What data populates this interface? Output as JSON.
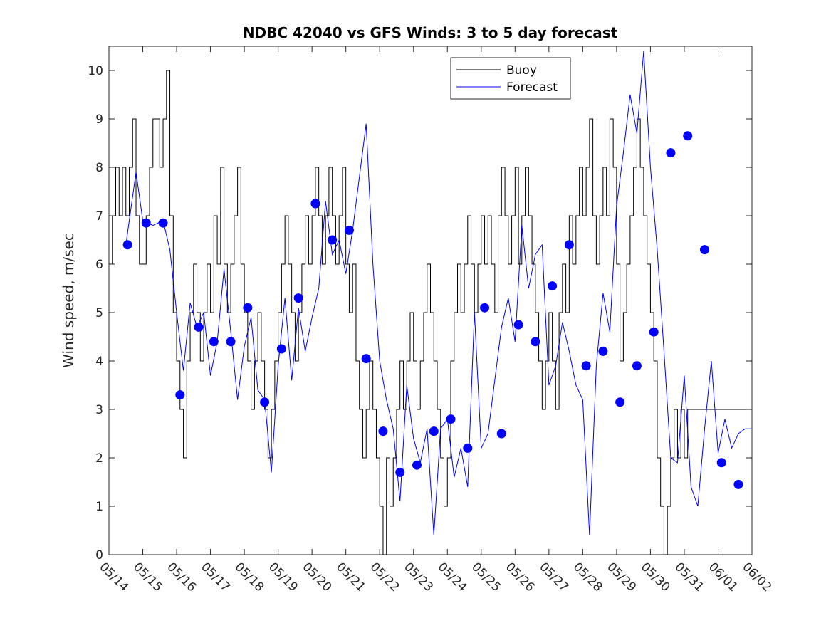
{
  "chart_data": {
    "type": "line",
    "title": "NDBC 42040 vs GFS Winds: 3 to 5 day forecast",
    "xlabel": "",
    "ylabel": "Wind speed, m/sec",
    "xlim": [
      "05/14",
      "06/02"
    ],
    "ylim": [
      0,
      10.5
    ],
    "x_ticks": [
      "05/14",
      "05/15",
      "05/16",
      "05/17",
      "05/18",
      "05/19",
      "05/20",
      "05/21",
      "05/22",
      "05/23",
      "05/24",
      "05/25",
      "05/26",
      "05/27",
      "05/28",
      "05/29",
      "05/30",
      "05/31",
      "06/01",
      "06/02"
    ],
    "y_ticks": [
      0,
      1,
      2,
      3,
      4,
      5,
      6,
      7,
      8,
      9,
      10
    ],
    "grid": false,
    "legend_position": "top",
    "colors": {
      "buoy": "#000000",
      "forecast": "#0000ff",
      "markers": "#0000ff"
    },
    "series": [
      {
        "name": "Buoy",
        "style": "step",
        "x_days": [
          0,
          0.1,
          0.2,
          0.3,
          0.4,
          0.5,
          0.6,
          0.7,
          0.8,
          0.9,
          1.0,
          1.1,
          1.2,
          1.3,
          1.4,
          1.5,
          1.6,
          1.7,
          1.8,
          1.9,
          2.0,
          2.1,
          2.2,
          2.3,
          2.4,
          2.5,
          2.6,
          2.7,
          2.8,
          2.9,
          3.0,
          3.1,
          3.2,
          3.3,
          3.4,
          3.5,
          3.6,
          3.7,
          3.8,
          3.9,
          4.0,
          4.1,
          4.2,
          4.3,
          4.4,
          4.5,
          4.6,
          4.7,
          4.8,
          4.9,
          5.0,
          5.1,
          5.2,
          5.3,
          5.4,
          5.5,
          5.6,
          5.7,
          5.8,
          5.9,
          6.0,
          6.1,
          6.2,
          6.3,
          6.4,
          6.5,
          6.6,
          6.7,
          6.8,
          6.9,
          7.0,
          7.1,
          7.2,
          7.3,
          7.4,
          7.5,
          7.6,
          7.7,
          7.8,
          7.9,
          8.0,
          8.1,
          8.2,
          8.3,
          8.4,
          8.5,
          8.6,
          8.7,
          8.8,
          8.9,
          9.0,
          9.1,
          9.2,
          9.3,
          9.4,
          9.5,
          9.6,
          9.7,
          9.8,
          9.9,
          10.0,
          10.1,
          10.2,
          10.3,
          10.4,
          10.5,
          10.6,
          10.7,
          10.8,
          10.9,
          11.0,
          11.1,
          11.2,
          11.3,
          11.4,
          11.5,
          11.6,
          11.7,
          11.8,
          11.9,
          12.0,
          12.1,
          12.2,
          12.3,
          12.4,
          12.5,
          12.6,
          12.7,
          12.8,
          12.9,
          13.0,
          13.1,
          13.2,
          13.3,
          13.4,
          13.5,
          13.6,
          13.7,
          13.8,
          13.9,
          14.0,
          14.1,
          14.2,
          14.3,
          14.4,
          14.5,
          14.6,
          14.7,
          14.8,
          14.9,
          15.0,
          15.1,
          15.2,
          15.3,
          15.4,
          15.5,
          15.6,
          15.7,
          15.8,
          15.9,
          16.0,
          16.1,
          16.2,
          16.3,
          16.4,
          16.5,
          16.6,
          16.7,
          16.8,
          16.9,
          17.0,
          17.1,
          17.2,
          17.3,
          17.4,
          17.5,
          17.6,
          17.7,
          17.8,
          17.9,
          18.0,
          18.1,
          18.2,
          18.3,
          18.4,
          18.5,
          18.6,
          18.7,
          18.8,
          18.9,
          19.0
        ],
        "values": [
          6,
          7,
          8,
          7,
          8,
          7,
          8,
          9,
          7,
          6,
          6,
          7,
          8,
          9,
          9,
          8,
          9,
          10,
          7,
          5,
          4,
          3,
          2,
          4,
          5,
          6,
          5,
          4,
          5,
          6,
          5,
          7,
          6,
          8,
          6,
          5,
          6,
          7,
          8,
          6,
          5,
          4,
          3,
          4,
          5,
          4,
          3,
          2,
          3,
          4,
          5,
          6,
          7,
          6,
          5,
          4,
          5,
          6,
          7,
          6,
          7,
          8,
          7,
          6,
          7,
          8,
          7,
          6,
          7,
          8,
          6,
          5,
          6,
          4,
          3,
          2,
          3,
          4,
          3,
          2,
          1,
          0,
          2,
          1,
          2,
          3,
          4,
          3,
          4,
          5,
          4,
          3,
          4,
          5,
          6,
          5,
          4,
          3,
          2,
          1,
          2,
          4,
          5,
          6,
          5,
          6,
          7,
          6,
          5,
          6,
          7,
          6,
          7,
          6,
          5,
          7,
          8,
          7,
          6,
          7,
          8,
          6,
          7,
          8,
          7,
          6,
          5,
          4,
          3,
          4,
          5,
          4,
          3,
          5,
          6,
          5,
          7,
          6,
          7,
          8,
          7,
          8,
          9,
          7,
          6,
          7,
          8,
          7,
          9,
          8,
          6,
          4,
          5,
          6,
          7,
          8,
          9,
          8,
          7,
          6,
          5,
          4,
          2,
          1,
          0,
          1,
          2,
          3,
          2,
          3,
          2,
          3,
          3,
          3,
          3,
          3,
          3,
          3,
          3,
          3,
          3,
          3,
          3,
          3,
          3,
          3,
          3,
          3,
          3,
          3,
          3
        ]
      },
      {
        "name": "Forecast",
        "style": "line",
        "x_days": [
          0.5,
          0.8,
          1.0,
          1.3,
          1.6,
          1.8,
          2.0,
          2.2,
          2.4,
          2.6,
          2.8,
          3.0,
          3.2,
          3.4,
          3.6,
          3.8,
          4.0,
          4.2,
          4.4,
          4.6,
          4.8,
          5.0,
          5.2,
          5.4,
          5.6,
          5.8,
          6.0,
          6.2,
          6.4,
          6.6,
          6.8,
          7.0,
          7.2,
          7.4,
          7.6,
          7.8,
          8.0,
          8.2,
          8.4,
          8.6,
          8.8,
          9.0,
          9.2,
          9.4,
          9.6,
          9.8,
          10.0,
          10.2,
          10.4,
          10.6,
          10.8,
          11.0,
          11.2,
          11.4,
          11.6,
          11.8,
          12.0,
          12.2,
          12.4,
          12.6,
          12.8,
          13.0,
          13.2,
          13.4,
          13.6,
          13.8,
          14.0,
          14.2,
          14.4,
          14.6,
          14.8,
          15.0,
          15.2,
          15.4,
          15.6,
          15.8,
          16.0,
          16.2,
          16.4,
          16.6,
          16.8,
          17.0,
          17.2,
          17.4,
          17.6,
          17.8,
          18.0,
          18.2,
          18.4,
          18.6,
          18.8,
          19.0
        ],
        "values": [
          6.4,
          7.9,
          6.9,
          6.8,
          6.9,
          6.3,
          5.0,
          3.8,
          5.2,
          4.7,
          5.0,
          3.7,
          4.4,
          5.9,
          4.6,
          3.2,
          4.3,
          4.9,
          3.4,
          3.2,
          1.7,
          3.9,
          5.3,
          3.6,
          5.1,
          4.2,
          4.9,
          5.5,
          7.3,
          6.2,
          6.5,
          5.8,
          6.7,
          7.8,
          8.9,
          6.0,
          4.0,
          3.2,
          2.6,
          1.1,
          3.5,
          2.4,
          1.9,
          2.6,
          0.4,
          2.6,
          2.8,
          1.6,
          2.2,
          1.4,
          5.0,
          2.2,
          2.5,
          3.6,
          4.7,
          5.3,
          4.4,
          6.8,
          5.5,
          6.2,
          6.4,
          3.5,
          3.9,
          4.8,
          4.2,
          3.5,
          3.2,
          0.4,
          3.9,
          5.4,
          4.6,
          7.2,
          8.3,
          9.5,
          8.7,
          10.4,
          8.0,
          6.3,
          4.2,
          2.0,
          1.9,
          3.7,
          1.4,
          1.0,
          2.6,
          4.0,
          2.1,
          2.8,
          2.2,
          2.5,
          2.6,
          2.6
        ]
      },
      {
        "name": "",
        "style": "markers",
        "x_days": [
          0.55,
          1.1,
          1.6,
          2.1,
          2.65,
          3.1,
          3.6,
          4.1,
          4.6,
          5.1,
          5.6,
          6.1,
          6.6,
          7.1,
          7.6,
          8.1,
          8.6,
          9.1,
          9.6,
          10.1,
          10.6,
          11.1,
          11.6,
          12.1,
          12.6,
          13.1,
          13.6,
          14.1,
          14.6,
          15.1,
          15.6,
          16.1,
          16.6,
          17.1,
          17.6,
          18.1,
          18.6
        ],
        "values": [
          6.4,
          6.85,
          6.85,
          3.3,
          4.7,
          4.4,
          4.4,
          5.1,
          3.15,
          4.25,
          5.3,
          7.25,
          6.5,
          6.7,
          4.05,
          2.55,
          1.7,
          1.85,
          2.55,
          2.8,
          2.2,
          5.1,
          2.5,
          4.75,
          4.4,
          5.55,
          6.4,
          3.9,
          4.2,
          3.15,
          3.9,
          4.6,
          8.3,
          8.65,
          6.3,
          1.9,
          1.45
        ]
      }
    ]
  }
}
